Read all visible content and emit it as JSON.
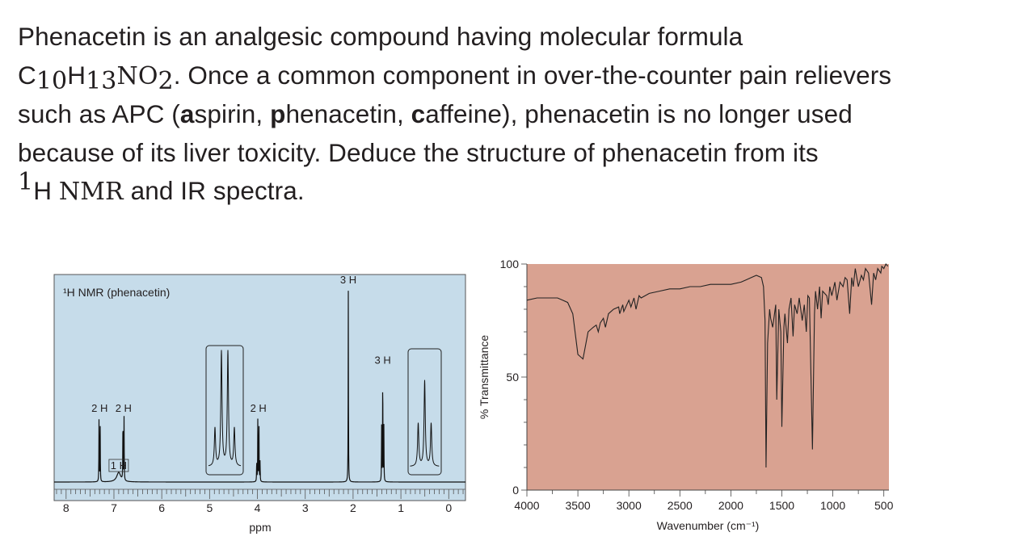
{
  "intro": {
    "s1": "Phenacetin is an analgesic compound having molecular formula",
    "f_c": "C",
    "f_c_n": "10",
    "f_h": "H",
    "f_h_n": "13",
    "f_n": "NO",
    "f_o_n": "2",
    "s2": ". Once a common component in over-the-counter pain relievers",
    "s3": "such as APC (",
    "a_b": "a",
    "a_r": "spirin, ",
    "p_b": "p",
    "p_r": "henacetin, ",
    "c_b": "c",
    "c_r": "affeine), phenacetin is no longer used",
    "s4": "because of its liver toxicity. Deduce the structure of phenacetin from its",
    "sup1": "1",
    "h": "H ",
    "nmr": "NMR",
    "s5": " and IR spectra."
  },
  "chart_data": [
    {
      "type": "line",
      "title": "¹H NMR (phenacetin)",
      "xlabel": "ppm",
      "ylabel": "",
      "x_axis_reversed": true,
      "xlim": [
        8.25,
        -0.35
      ],
      "x_ticks": [
        "8",
        "7",
        "6",
        "5",
        "4",
        "3",
        "2",
        "1",
        "0"
      ],
      "background": "#c6dcea",
      "grid": false,
      "peaks": [
        {
          "shift": 7.3,
          "label": "2 H",
          "height": 0.33,
          "multiplicity": "doublet"
        },
        {
          "shift": 6.9,
          "label": "1 H",
          "height": 0.05,
          "multiplicity": "broad singlet"
        },
        {
          "shift": 6.8,
          "label": "2 H",
          "height": 0.33,
          "multiplicity": "doublet"
        },
        {
          "shift": 3.98,
          "label": "2 H",
          "height": 0.33,
          "multiplicity": "quartet"
        },
        {
          "shift": 2.1,
          "label": "3 H",
          "height": 1.0,
          "multiplicity": "singlet"
        },
        {
          "shift": 1.38,
          "label": "3 H",
          "height": 0.58,
          "multiplicity": "triplet"
        }
      ],
      "expansions": [
        "quartet near 4.0 ppm",
        "triplet near 1.4 ppm"
      ]
    },
    {
      "type": "line",
      "title": "",
      "xlabel": "Wavenumber (cm⁻¹)",
      "ylabel": "% Transmittance",
      "xlim": [
        4000,
        450
      ],
      "ylim": [
        0,
        100
      ],
      "x_ticks": [
        "4000",
        "3500",
        "3000",
        "2500",
        "2000",
        "1500",
        "1000",
        "500"
      ],
      "y_ticks": [
        "0",
        "50",
        "100"
      ],
      "background": "#d9a291",
      "grid": false,
      "series": [
        {
          "x": [
            4000,
            3900,
            3800,
            3700,
            3650,
            3600,
            3550,
            3500,
            3450,
            3400,
            3350,
            3320,
            3300,
            3280,
            3250,
            3230,
            3200,
            3150,
            3100,
            3090,
            3060,
            3050,
            3000,
            2980,
            2950,
            2930,
            2900,
            2880,
            2800,
            2700,
            2600,
            2500,
            2400,
            2300,
            2200,
            2100,
            2000,
            1900,
            1850,
            1800,
            1750,
            1700,
            1680,
            1665,
            1655,
            1640,
            1620,
            1610,
            1590,
            1560,
            1550,
            1530,
            1510,
            1500,
            1480,
            1470,
            1445,
            1430,
            1410,
            1390,
            1375,
            1350,
            1330,
            1300,
            1280,
            1260,
            1245,
            1230,
            1200,
            1180,
            1170,
            1150,
            1130,
            1115,
            1100,
            1060,
            1045,
            1030,
            1010,
            980,
            960,
            930,
            900,
            880,
            860,
            835,
            815,
            800,
            780,
            750,
            720,
            700,
            680,
            650,
            620,
            600,
            580,
            560,
            530,
            520,
            500,
            480,
            460
          ],
          "y": [
            84,
            85,
            85,
            85,
            84,
            83,
            78,
            60,
            58,
            70,
            72,
            73,
            70,
            74,
            76,
            72,
            78,
            80,
            81,
            78,
            82,
            79,
            84,
            81,
            85,
            80,
            86,
            85,
            87,
            88,
            89,
            89,
            90,
            90,
            91,
            91,
            91,
            92,
            93,
            94,
            95,
            94,
            90,
            75,
            10,
            65,
            80,
            76,
            72,
            82,
            40,
            80,
            70,
            28,
            72,
            78,
            65,
            80,
            85,
            68,
            82,
            78,
            85,
            75,
            82,
            70,
            86,
            85,
            18,
            78,
            88,
            80,
            90,
            76,
            88,
            86,
            82,
            90,
            86,
            92,
            84,
            92,
            90,
            94,
            93,
            78,
            94,
            90,
            98,
            90,
            95,
            93,
            98,
            96,
            82,
            96,
            93,
            98,
            96,
            99,
            98,
            100,
            99
          ]
        }
      ]
    }
  ]
}
